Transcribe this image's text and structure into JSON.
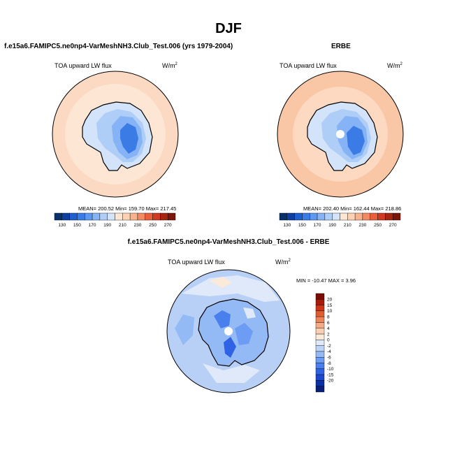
{
  "page": {
    "title": "DJF",
    "left_title": "f.e15a6.FAMIPC5.ne0np4-VarMeshNH3.Club_Test.006 (yrs 1979-2004)",
    "right_title": "ERBE",
    "diff_title": "f.e15a6.FAMIPC5.ne0np4-VarMeshNH3.Club_Test.006 - ERBE"
  },
  "colors": {
    "abs_scale": [
      "#08306b",
      "#0d3fa0",
      "#1f5fcf",
      "#3b7be6",
      "#5e98f0",
      "#85b3f5",
      "#aecdf7",
      "#d3e3f9",
      "#fde6d4",
      "#fcd1b4",
      "#f9b28c",
      "#f48a61",
      "#e95f3b",
      "#cf3a20",
      "#a82512",
      "#7a160a"
    ],
    "diff_scale": [
      "#08207a",
      "#0b2fa6",
      "#1b48cc",
      "#2f63e3",
      "#4a80ee",
      "#6c9cf3",
      "#94baf6",
      "#bdd4f8",
      "#dfe9fa",
      "#fbe9da",
      "#f8cfb1",
      "#f3ad86",
      "#ec8558",
      "#e15c30",
      "#cc3516",
      "#a81c08",
      "#7a0c02"
    ],
    "land_abs": "#fde6d4",
    "ocean_abs": "#fbd9c2",
    "ocean_diff": "#b8d0f6"
  },
  "chart_data": [
    {
      "type": "heatmap",
      "projection": "south polar stereographic",
      "title": "TOA upward LW flux",
      "units": "W/m2",
      "stats": {
        "mean": 200.52,
        "min": 159.7,
        "max": 217.45
      },
      "stats_text": "MEAN= 200.52  Min= 159.70  Max= 217.45",
      "colorbar_ticks": [
        "130",
        "150",
        "170",
        "190",
        "210",
        "230",
        "250",
        "270"
      ]
    },
    {
      "type": "heatmap",
      "projection": "south polar stereographic",
      "title": "TOA upward LW flux",
      "units": "W/m2",
      "stats": {
        "mean": 202.4,
        "min": 162.44,
        "max": 218.86
      },
      "stats_text": "MEAN= 202.40  Min= 162.44  Max= 218.86",
      "colorbar_ticks": [
        "130",
        "150",
        "170",
        "190",
        "210",
        "230",
        "250",
        "270"
      ]
    },
    {
      "type": "heatmap",
      "projection": "south polar stereographic",
      "title": "TOA upward LW flux",
      "units": "W/m2",
      "stats": {
        "min": -10.47,
        "max": 3.96
      },
      "stats_text": "MIN = -10.47  MAX =   3.96",
      "colorbar_ticks": [
        "20",
        "15",
        "10",
        "8",
        "6",
        "4",
        "2",
        "0",
        "-2",
        "-4",
        "-6",
        "-8",
        "-10",
        "-15",
        "-20"
      ]
    }
  ]
}
